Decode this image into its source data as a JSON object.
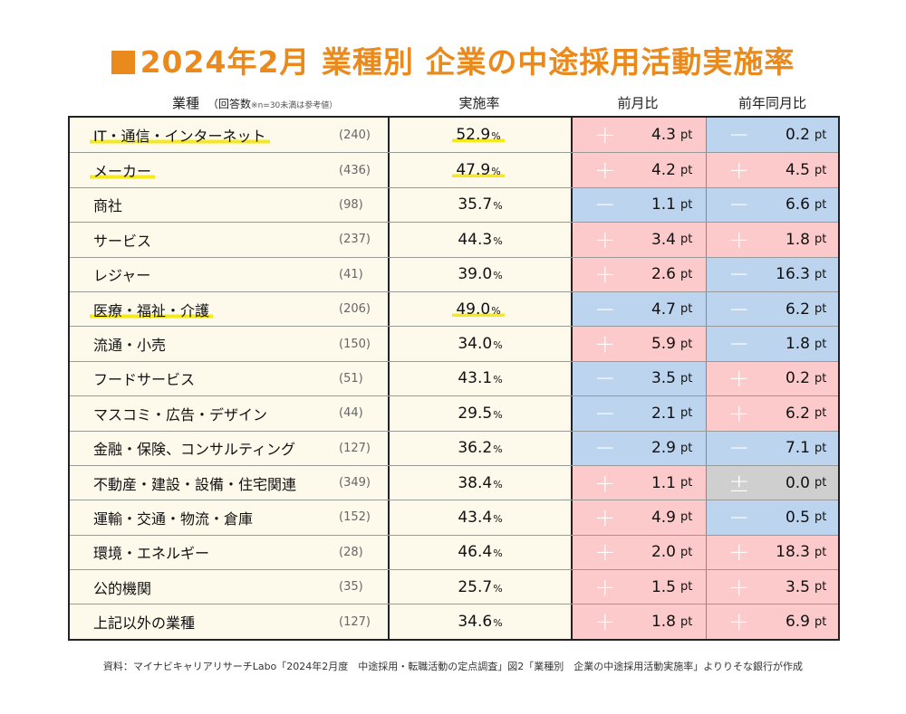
{
  "title": "2024年2月 業種別 企業の中途採用活動実施率",
  "headers": {
    "industry": "業種",
    "count": "（回答数",
    "count_note": "※n=30未満は参考値）",
    "rate": "実施率",
    "mom": "前月比",
    "yoy": "前年同月比"
  },
  "units": {
    "percent": "%",
    "pt": "pt"
  },
  "rows": [
    {
      "name": "IT・通信・インターネット",
      "n": "(240)",
      "rate": "52.9",
      "mom_sign": "+",
      "mom": "4.3",
      "yoy_sign": "−",
      "yoy": "0.2",
      "highlight": true
    },
    {
      "name": "メーカー",
      "n": "(436)",
      "rate": "47.9",
      "mom_sign": "+",
      "mom": "4.2",
      "yoy_sign": "+",
      "yoy": "4.5",
      "highlight": true
    },
    {
      "name": "商社",
      "n": "(98)",
      "rate": "35.7",
      "mom_sign": "−",
      "mom": "1.1",
      "yoy_sign": "−",
      "yoy": "6.6",
      "highlight": false
    },
    {
      "name": "サービス",
      "n": "(237)",
      "rate": "44.3",
      "mom_sign": "+",
      "mom": "3.4",
      "yoy_sign": "+",
      "yoy": "1.8",
      "highlight": false
    },
    {
      "name": "レジャー",
      "n": "(41)",
      "rate": "39.0",
      "mom_sign": "+",
      "mom": "2.6",
      "yoy_sign": "−",
      "yoy": "16.3",
      "highlight": false
    },
    {
      "name": "医療・福祉・介護",
      "n": "(206)",
      "rate": "49.0",
      "mom_sign": "−",
      "mom": "4.7",
      "yoy_sign": "−",
      "yoy": "6.2",
      "highlight": true
    },
    {
      "name": "流通・小売",
      "n": "(150)",
      "rate": "34.0",
      "mom_sign": "+",
      "mom": "5.9",
      "yoy_sign": "−",
      "yoy": "1.8",
      "highlight": false
    },
    {
      "name": "フードサービス",
      "n": "(51)",
      "rate": "43.1",
      "mom_sign": "−",
      "mom": "3.5",
      "yoy_sign": "+",
      "yoy": "0.2",
      "highlight": false
    },
    {
      "name": "マスコミ・広告・デザイン",
      "n": "(44)",
      "rate": "29.5",
      "mom_sign": "−",
      "mom": "2.1",
      "yoy_sign": "+",
      "yoy": "6.2",
      "highlight": false
    },
    {
      "name": "金融・保険、コンサルティング",
      "n": "(127)",
      "rate": "36.2",
      "mom_sign": "−",
      "mom": "2.9",
      "yoy_sign": "−",
      "yoy": "7.1",
      "highlight": false
    },
    {
      "name": "不動産・建設・設備・住宅関連",
      "n": "(349)",
      "rate": "38.4",
      "mom_sign": "+",
      "mom": "1.1",
      "yoy_sign": "±",
      "yoy": "0.0",
      "highlight": false
    },
    {
      "name": "運輸・交通・物流・倉庫",
      "n": "(152)",
      "rate": "43.4",
      "mom_sign": "+",
      "mom": "4.9",
      "yoy_sign": "−",
      "yoy": "0.5",
      "highlight": false
    },
    {
      "name": "環境・エネルギー",
      "n": "(28)",
      "rate": "46.4",
      "mom_sign": "+",
      "mom": "2.0",
      "yoy_sign": "+",
      "yoy": "18.3",
      "highlight": false
    },
    {
      "name": "公的機関",
      "n": "(35)",
      "rate": "25.7",
      "mom_sign": "+",
      "mom": "1.5",
      "yoy_sign": "+",
      "yoy": "3.5",
      "highlight": false
    },
    {
      "name": "上記以外の業種",
      "n": "(127)",
      "rate": "34.6",
      "mom_sign": "+",
      "mom": "1.8",
      "yoy_sign": "+",
      "yoy": "6.9",
      "highlight": false
    }
  ],
  "colors": {
    "accent": "#ea8a1d",
    "positive": "#fccaca",
    "negative": "#bcd4ee",
    "neutral": "#cfcfcf",
    "highlight": "#f5e81c"
  },
  "source": "資料：マイナビキャリアリサーチLabo「2024年2月度　中途採用・転職活動の定点調査」図2「業種別　企業の中途採用活動実施率」よりりそな銀行が作成"
}
